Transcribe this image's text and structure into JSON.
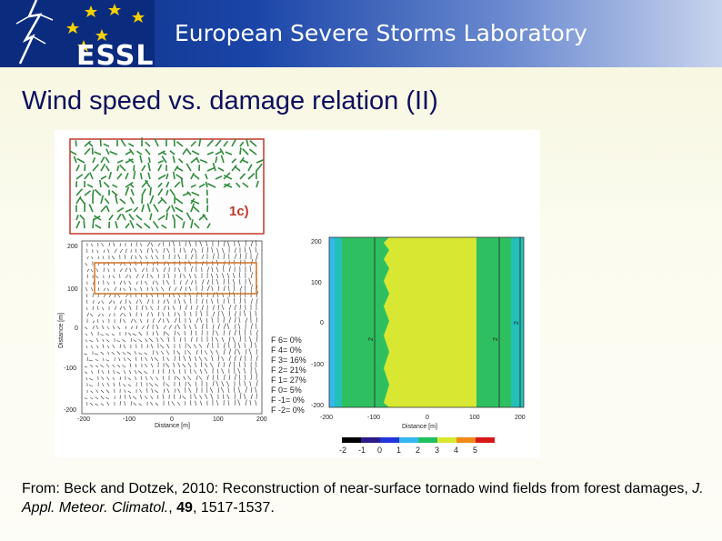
{
  "header": {
    "title": "European Severe Storms Laboratory",
    "logo_text": "ESSL"
  },
  "slide_title": "Wind speed vs. damage relation (II)",
  "figure": {
    "inset": {
      "label": "1c)"
    },
    "left_panel": {
      "y_axis_label": "Distance [m]",
      "x_axis_label": "Distance [m]",
      "y_ticks": [
        "200",
        "100",
        "0",
        "-100",
        "-200"
      ],
      "x_ticks": [
        "-200",
        "-100",
        "0",
        "100",
        "200"
      ],
      "legend": [
        "F 6= 0%",
        "F 4= 0%",
        "F 3= 16%",
        "F 2= 21%",
        "F 1= 27%",
        "F 0= 5%",
        "F -1= 0%",
        "F -2= 0%"
      ]
    },
    "right_panel": {
      "x_axis_label": "Distance [m]",
      "y_ticks": [
        "200",
        "100",
        "0",
        "-100",
        "-200"
      ],
      "x_ticks": [
        "-200",
        "-100",
        "0",
        "100",
        "200"
      ],
      "contour_labels": [
        "2",
        "2",
        "2"
      ],
      "colorbar_ticks": [
        "-2",
        "-1",
        "0",
        "1",
        "2",
        "3",
        "4",
        "5"
      ],
      "colorbar_colors": [
        "#000000",
        "#2a1a8a",
        "#2036d8",
        "#34b6f0",
        "#22c060",
        "#d8e830",
        "#f08a18",
        "#d81818"
      ]
    }
  },
  "caption": {
    "prefix": "From: Beck and Dotzek, 2010: Reconstruction of near-surface tornado wind fields from forest damages, ",
    "journal": "J. Appl. Meteor. Climatol.",
    "sep": ", ",
    "volume": "49",
    "pages": ", 1517-1537."
  }
}
